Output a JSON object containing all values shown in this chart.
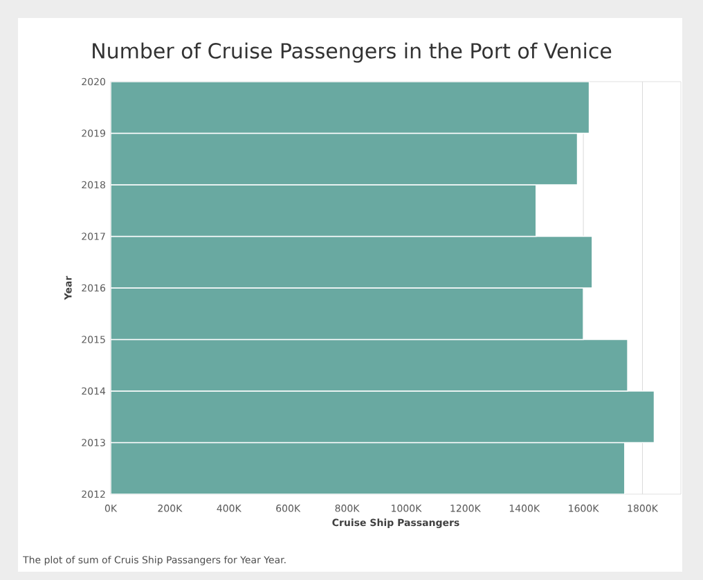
{
  "chart_data": {
    "type": "histogram",
    "orientation": "horizontal",
    "title": "Number of Cruise Passengers in the Port of Venice",
    "xlabel": "Cruise Ship Passangers",
    "ylabel": "Year",
    "bins": [
      2012,
      2013,
      2014,
      2015,
      2016,
      2017,
      2018,
      2019,
      2020
    ],
    "values": [
      1740000,
      1840000,
      1750000,
      1600000,
      1630000,
      1440000,
      1580000,
      1620000
    ],
    "color": "#69a9a1",
    "xlim": [
      0,
      1930000
    ],
    "xticks": [
      {
        "value": 0,
        "label": "0K"
      },
      {
        "value": 200000,
        "label": "200K"
      },
      {
        "value": 400000,
        "label": "400K"
      },
      {
        "value": 600000,
        "label": "600K"
      },
      {
        "value": 800000,
        "label": "800K"
      },
      {
        "value": 1000000,
        "label": "1000K"
      },
      {
        "value": 1200000,
        "label": "1200K"
      },
      {
        "value": 1400000,
        "label": "1400K"
      },
      {
        "value": 1600000,
        "label": "1600K"
      },
      {
        "value": 1800000,
        "label": "1800K"
      }
    ],
    "ylim": [
      2012,
      2020
    ],
    "yticks": [
      2012,
      2013,
      2014,
      2015,
      2016,
      2017,
      2018,
      2019,
      2020
    ],
    "grid": "x",
    "annotations": [
      "The plot of sum of Cruis Ship Passangers for Year Year."
    ]
  }
}
